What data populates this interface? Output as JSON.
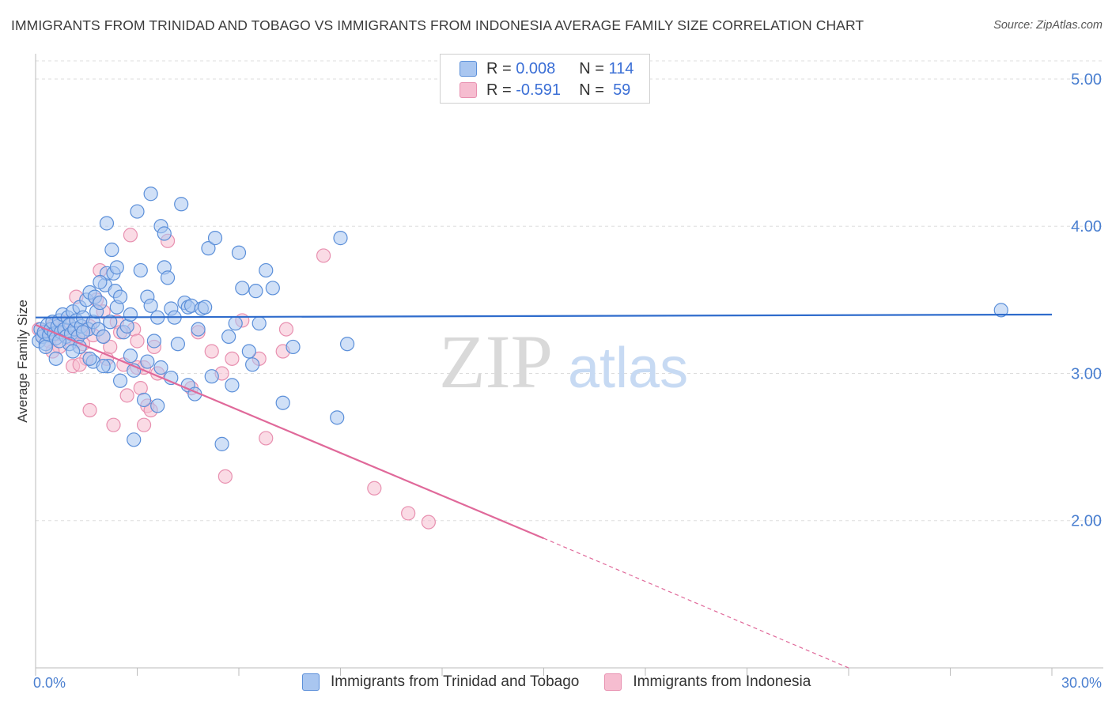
{
  "header": {
    "title": "IMMIGRANTS FROM TRINIDAD AND TOBAGO VS IMMIGRANTS FROM INDONESIA AVERAGE FAMILY SIZE CORRELATION CHART",
    "source": "Source: ZipAtlas.com"
  },
  "watermark": {
    "zip": "ZIP",
    "atlas": "atlas"
  },
  "legend": {
    "rows": [
      {
        "r_label": "R =",
        "r_value": "0.008",
        "n_label": "N =",
        "n_value": "114"
      },
      {
        "r_label": "R =",
        "r_value": "-0.591",
        "n_label": "N =",
        "n_value": "59"
      }
    ]
  },
  "colors": {
    "series1_fill": "#a9c6f0",
    "series1_stroke": "#5b8fd9",
    "series1_line": "#2f6ccc",
    "series2_fill": "#f6bdd0",
    "series2_stroke": "#e890b0",
    "series2_line": "#e0699a",
    "tick_text": "#4a7fd0",
    "grid": "#dddddd"
  },
  "chart_data": {
    "type": "scatter",
    "title": "IMMIGRANTS FROM TRINIDAD AND TOBAGO VS IMMIGRANTS FROM INDONESIA AVERAGE FAMILY SIZE CORRELATION CHART",
    "xlabel": "",
    "ylabel": "Average Family Size",
    "xlim": [
      0,
      30
    ],
    "ylim": [
      1.0,
      5.15
    ],
    "x_tick_labels": [
      "0.0%",
      "30.0%"
    ],
    "y_ticks": [
      2.0,
      3.0,
      4.0,
      5.0
    ],
    "y_tick_labels": [
      "2.00",
      "3.00",
      "4.00",
      "5.00"
    ],
    "series": [
      {
        "name": "Immigrants from Trinidad and Tobago",
        "r": 0.008,
        "n": 114,
        "trend": {
          "x": [
            0,
            30
          ],
          "y": [
            3.38,
            3.4
          ]
        },
        "points": [
          [
            0.1,
            3.22
          ],
          [
            0.15,
            3.3
          ],
          [
            0.2,
            3.25
          ],
          [
            0.25,
            3.28
          ],
          [
            0.3,
            3.2
          ],
          [
            0.35,
            3.33
          ],
          [
            0.4,
            3.26
          ],
          [
            0.45,
            3.3
          ],
          [
            0.5,
            3.35
          ],
          [
            0.55,
            3.27
          ],
          [
            0.6,
            3.24
          ],
          [
            0.65,
            3.32
          ],
          [
            0.7,
            3.36
          ],
          [
            0.75,
            3.28
          ],
          [
            0.8,
            3.4
          ],
          [
            0.85,
            3.3
          ],
          [
            0.9,
            3.25
          ],
          [
            0.95,
            3.38
          ],
          [
            1.0,
            3.33
          ],
          [
            1.05,
            3.27
          ],
          [
            1.1,
            3.42
          ],
          [
            1.15,
            3.3
          ],
          [
            1.2,
            3.36
          ],
          [
            1.25,
            3.25
          ],
          [
            1.3,
            3.45
          ],
          [
            1.35,
            3.32
          ],
          [
            1.4,
            3.38
          ],
          [
            1.5,
            3.5
          ],
          [
            1.55,
            3.3
          ],
          [
            1.6,
            3.55
          ],
          [
            1.7,
            3.35
          ],
          [
            1.75,
            3.52
          ],
          [
            1.8,
            3.42
          ],
          [
            1.85,
            3.3
          ],
          [
            1.9,
            3.48
          ],
          [
            2.0,
            3.25
          ],
          [
            2.05,
            3.6
          ],
          [
            2.1,
            3.68
          ],
          [
            2.15,
            3.05
          ],
          [
            2.2,
            3.35
          ],
          [
            2.25,
            3.84
          ],
          [
            2.3,
            3.68
          ],
          [
            2.35,
            3.56
          ],
          [
            2.4,
            3.45
          ],
          [
            1.9,
            3.62
          ],
          [
            1.7,
            3.08
          ],
          [
            2.0,
            3.05
          ],
          [
            2.1,
            4.02
          ],
          [
            2.4,
            3.72
          ],
          [
            2.5,
            3.52
          ],
          [
            2.6,
            3.28
          ],
          [
            2.7,
            3.32
          ],
          [
            2.8,
            3.4
          ],
          [
            2.9,
            3.02
          ],
          [
            2.9,
            2.55
          ],
          [
            3.0,
            4.1
          ],
          [
            3.1,
            3.7
          ],
          [
            3.2,
            2.82
          ],
          [
            3.3,
            3.52
          ],
          [
            3.4,
            3.46
          ],
          [
            3.5,
            3.22
          ],
          [
            3.6,
            3.38
          ],
          [
            3.7,
            3.04
          ],
          [
            3.7,
            4.0
          ],
          [
            3.8,
            3.95
          ],
          [
            3.8,
            3.72
          ],
          [
            3.9,
            3.65
          ],
          [
            4.0,
            3.44
          ],
          [
            4.1,
            3.38
          ],
          [
            4.2,
            3.2
          ],
          [
            4.3,
            4.15
          ],
          [
            4.4,
            3.48
          ],
          [
            4.5,
            3.45
          ],
          [
            4.5,
            2.92
          ],
          [
            4.6,
            3.46
          ],
          [
            4.7,
            2.86
          ],
          [
            4.8,
            3.3
          ],
          [
            4.9,
            3.44
          ],
          [
            5.0,
            3.45
          ],
          [
            5.1,
            3.85
          ],
          [
            5.2,
            2.98
          ],
          [
            5.3,
            3.92
          ],
          [
            5.5,
            2.52
          ],
          [
            5.7,
            3.25
          ],
          [
            5.8,
            2.92
          ],
          [
            5.9,
            3.34
          ],
          [
            6.0,
            3.82
          ],
          [
            6.1,
            3.58
          ],
          [
            6.3,
            3.15
          ],
          [
            6.4,
            3.06
          ],
          [
            6.5,
            3.56
          ],
          [
            6.6,
            3.34
          ],
          [
            6.8,
            3.7
          ],
          [
            7.0,
            3.58
          ],
          [
            7.3,
            2.8
          ],
          [
            3.4,
            4.22
          ],
          [
            1.0,
            3.2
          ],
          [
            0.6,
            3.1
          ],
          [
            1.3,
            3.18
          ],
          [
            2.8,
            3.12
          ],
          [
            3.6,
            2.78
          ],
          [
            2.5,
            2.95
          ],
          [
            7.6,
            3.18
          ],
          [
            9.0,
            3.92
          ],
          [
            9.2,
            3.2
          ],
          [
            8.9,
            2.7
          ],
          [
            28.5,
            3.43
          ],
          [
            0.3,
            3.18
          ],
          [
            0.7,
            3.22
          ],
          [
            1.1,
            3.15
          ],
          [
            1.6,
            3.1
          ],
          [
            3.3,
            3.08
          ],
          [
            4.0,
            2.97
          ],
          [
            1.4,
            3.28
          ]
        ]
      },
      {
        "name": "Immigrants from Indonesia",
        "r": -0.591,
        "n": 59,
        "trend": {
          "x": [
            0,
            15
          ],
          "y": [
            3.33,
            1.88
          ]
        },
        "trend_extension": {
          "x": [
            15,
            24
          ],
          "y": [
            1.88,
            1.0
          ]
        },
        "points": [
          [
            0.1,
            3.3
          ],
          [
            0.2,
            3.25
          ],
          [
            0.3,
            3.28
          ],
          [
            0.4,
            3.22
          ],
          [
            0.5,
            3.32
          ],
          [
            0.6,
            3.27
          ],
          [
            0.7,
            3.18
          ],
          [
            0.8,
            3.3
          ],
          [
            0.9,
            3.35
          ],
          [
            1.0,
            3.24
          ],
          [
            1.1,
            3.05
          ],
          [
            1.2,
            3.22
          ],
          [
            1.3,
            3.28
          ],
          [
            1.4,
            3.2
          ],
          [
            1.5,
            3.1
          ],
          [
            1.6,
            3.32
          ],
          [
            1.7,
            3.26
          ],
          [
            1.8,
            3.5
          ],
          [
            1.9,
            3.7
          ],
          [
            2.0,
            3.25
          ],
          [
            2.1,
            3.1
          ],
          [
            2.2,
            3.18
          ],
          [
            2.3,
            2.65
          ],
          [
            2.4,
            3.35
          ],
          [
            2.5,
            3.28
          ],
          [
            2.6,
            3.06
          ],
          [
            2.7,
            2.85
          ],
          [
            2.8,
            3.94
          ],
          [
            2.9,
            3.3
          ],
          [
            3.0,
            3.22
          ],
          [
            3.1,
            2.9
          ],
          [
            3.2,
            2.65
          ],
          [
            3.3,
            2.78
          ],
          [
            3.4,
            2.75
          ],
          [
            3.5,
            3.18
          ],
          [
            3.6,
            3.0
          ],
          [
            3.0,
            3.04
          ],
          [
            3.9,
            3.9
          ],
          [
            1.2,
            3.52
          ],
          [
            1.3,
            3.06
          ],
          [
            1.6,
            2.75
          ],
          [
            3.2,
            3.04
          ],
          [
            4.6,
            2.9
          ],
          [
            4.8,
            3.28
          ],
          [
            5.2,
            3.15
          ],
          [
            5.5,
            3.0
          ],
          [
            5.6,
            2.3
          ],
          [
            5.8,
            3.1
          ],
          [
            6.1,
            3.36
          ],
          [
            6.6,
            3.1
          ],
          [
            6.8,
            2.56
          ],
          [
            7.3,
            3.15
          ],
          [
            7.4,
            3.3
          ],
          [
            8.5,
            3.8
          ],
          [
            10.0,
            2.22
          ],
          [
            11.0,
            2.05
          ],
          [
            11.6,
            1.99
          ],
          [
            0.5,
            3.15
          ],
          [
            2.0,
            3.42
          ]
        ]
      }
    ]
  }
}
